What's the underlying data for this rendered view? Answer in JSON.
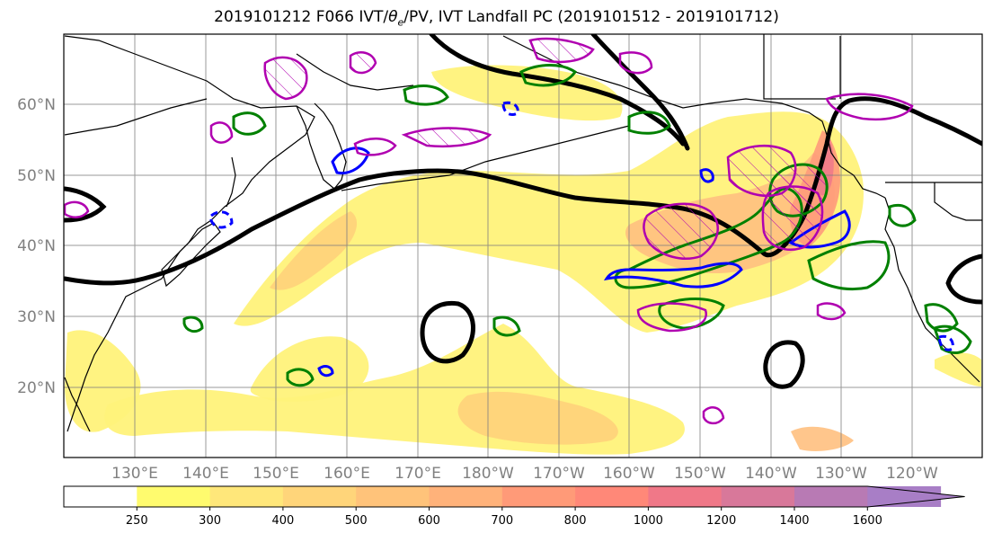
{
  "title": {
    "prefix": "2019101212 F066 IVT/",
    "theta": "θ",
    "theta_sub": "e",
    "suffix": "/PV, IVT Landfall PC (2019101512 - 2019101712)"
  },
  "map": {
    "lat_labels": [
      "60°N",
      "50°N",
      "40°N",
      "30°N",
      "20°N"
    ],
    "lon_labels": [
      "130°E",
      "140°E",
      "150°E",
      "160°E",
      "170°E",
      "180°W",
      "170°W",
      "160°W",
      "150°W",
      "140°W",
      "130°W",
      "120°W"
    ]
  },
  "colorbar": {
    "ticks": [
      "250",
      "300",
      "400",
      "500",
      "600",
      "700",
      "800",
      "1000",
      "1200",
      "1400",
      "1600"
    ],
    "colors": [
      "#ffffff",
      "#fffb6e",
      "#ffe77a",
      "#ffd57a",
      "#ffc37a",
      "#ffb27a",
      "#ff9a78",
      "#ff8878",
      "#f07888",
      "#d8789a",
      "#b87ab4",
      "#a87ec6"
    ],
    "extend": "max"
  },
  "contour_colors": {
    "theta_e": "#000000",
    "pv_pc": "#008000",
    "neg_pc": "#0000ff",
    "hatched_pc": "#b000b0"
  }
}
